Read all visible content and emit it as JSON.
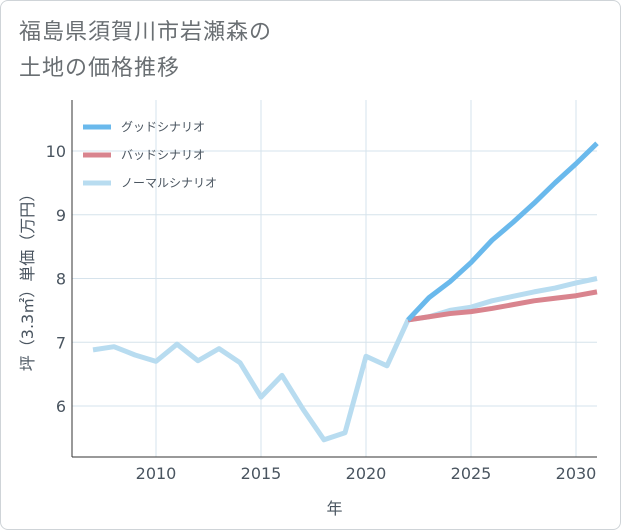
{
  "title": {
    "line1": "福島県須賀川市岩瀬森の",
    "line2": "土地の価格推移"
  },
  "colors": {
    "good": "#6ab9ec",
    "bad": "#d9848e",
    "normal": "#b8dcf0",
    "grid": "#d6e3ec",
    "axis": "#333333"
  },
  "chart_data": {
    "type": "line",
    "title": "福島県須賀川市岩瀬森の土地の価格推移",
    "xlabel": "年",
    "ylabel": "坪（3.3㎡）単価（万円）",
    "xlim": [
      2006,
      2031
    ],
    "ylim": [
      5.2,
      10.8
    ],
    "xticks": [
      2010,
      2015,
      2020,
      2025,
      2030
    ],
    "yticks": [
      6,
      7,
      8,
      9,
      10
    ],
    "grid": true,
    "legend_position": "top-left",
    "series": [
      {
        "key": "good",
        "name": "グッドシナリオ",
        "x": [
          2022,
          2023,
          2024,
          2025,
          2026,
          2027,
          2028,
          2029,
          2030,
          2031
        ],
        "y": [
          7.35,
          7.7,
          7.95,
          8.25,
          8.6,
          8.88,
          9.18,
          9.5,
          9.8,
          10.12
        ]
      },
      {
        "key": "bad",
        "name": "バッドシナリオ",
        "x": [
          2022,
          2023,
          2024,
          2025,
          2026,
          2027,
          2028,
          2029,
          2030,
          2031
        ],
        "y": [
          7.35,
          7.4,
          7.45,
          7.48,
          7.53,
          7.59,
          7.65,
          7.69,
          7.73,
          7.79
        ]
      },
      {
        "key": "normal",
        "name": "ノーマルシナリオ",
        "x": [
          2007,
          2008,
          2009,
          2010,
          2011,
          2012,
          2013,
          2014,
          2015,
          2016,
          2017,
          2018,
          2019,
          2020,
          2021,
          2022,
          2023,
          2024,
          2025,
          2026,
          2027,
          2028,
          2029,
          2030,
          2031
        ],
        "y": [
          6.88,
          6.93,
          6.8,
          6.7,
          6.97,
          6.71,
          6.9,
          6.68,
          6.14,
          6.48,
          5.95,
          5.47,
          5.58,
          6.78,
          6.63,
          7.35,
          7.4,
          7.5,
          7.55,
          7.65,
          7.72,
          7.79,
          7.85,
          7.93,
          8.0
        ]
      }
    ]
  }
}
